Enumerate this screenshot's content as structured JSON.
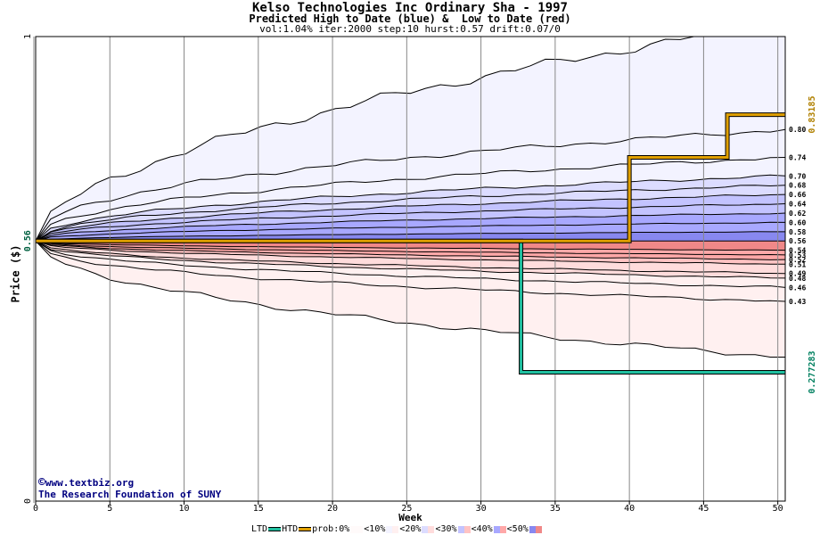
{
  "header": {
    "title": "Kelso Technologies Inc Ordinary Sha - 1997",
    "subtitle": "Predicted High to Date (blue) &  Low to Date (red)",
    "params": "vol:1.04% iter:2000 step:10 hurst:0.57 drift:0.07/0"
  },
  "credit": {
    "line1": "www.textbiz.org",
    "line2": "The Research Foundation of SUNY"
  },
  "legend": {
    "ltd": "LTD",
    "htd": "HTD",
    "prob": "prob:0%",
    "b10": "<10%",
    "b20": "<20%",
    "b30": "<30%",
    "b40": "<40%",
    "b50": "<50%"
  },
  "colors": {
    "ltd_line": "#20c0a0",
    "htd_line": "#e0a000",
    "blue_bands": [
      "#f3f3ff",
      "#dcdcff",
      "#c3c3ff",
      "#a8a8ff",
      "#8888f0"
    ],
    "red_bands": [
      "#fff0f0",
      "#ffdcdc",
      "#ffc3c3",
      "#ffa8a8",
      "#f08888"
    ],
    "right_high_label": "#b08000",
    "right_low_label": "#008060"
  },
  "chart_data": {
    "type": "area",
    "xlabel": "Week",
    "ylabel": "Price ($)",
    "xlim": [
      0,
      50.5
    ],
    "ylim": [
      0,
      1
    ],
    "x_ticks": [
      0,
      5,
      10,
      15,
      20,
      25,
      30,
      35,
      40,
      45,
      50
    ],
    "y_ticks": [
      0,
      0.56,
      1
    ],
    "y_tick_labels": [
      "0",
      "0.56",
      "1"
    ],
    "start_price": 0.56,
    "right_high_value": "0.83185",
    "right_low_value": "0.277283",
    "high_percentile_labels": [
      "0.80",
      "0.74",
      "0.70",
      "0.68",
      "0.66",
      "0.64",
      "0.62",
      "0.60",
      "0.58",
      "0.56"
    ],
    "high_percentile_values": [
      0.8,
      0.74,
      0.7,
      0.68,
      0.66,
      0.64,
      0.62,
      0.6,
      0.58,
      0.56
    ],
    "low_percentile_labels": [
      "0.54",
      "0.53",
      "0.52",
      "0.51",
      "0.49",
      "0.48",
      "0.46",
      "0.43"
    ],
    "low_percentile_values": [
      0.54,
      0.53,
      0.52,
      0.51,
      0.49,
      0.48,
      0.46,
      0.43
    ],
    "outer_high_end": 1.03,
    "outer_low_end": 0.31,
    "htd_series": {
      "name": "HTD",
      "x": [
        0,
        32.7,
        32.7,
        40.0,
        40.0,
        46.6,
        46.6,
        50.5
      ],
      "y": [
        0.56,
        0.56,
        0.56,
        0.56,
        0.74,
        0.74,
        0.83185,
        0.83185
      ]
    },
    "ltd_series": {
      "name": "LTD",
      "x": [
        0,
        32.7,
        32.7,
        50.5
      ],
      "y": [
        0.56,
        0.56,
        0.277283,
        0.277283
      ]
    }
  }
}
